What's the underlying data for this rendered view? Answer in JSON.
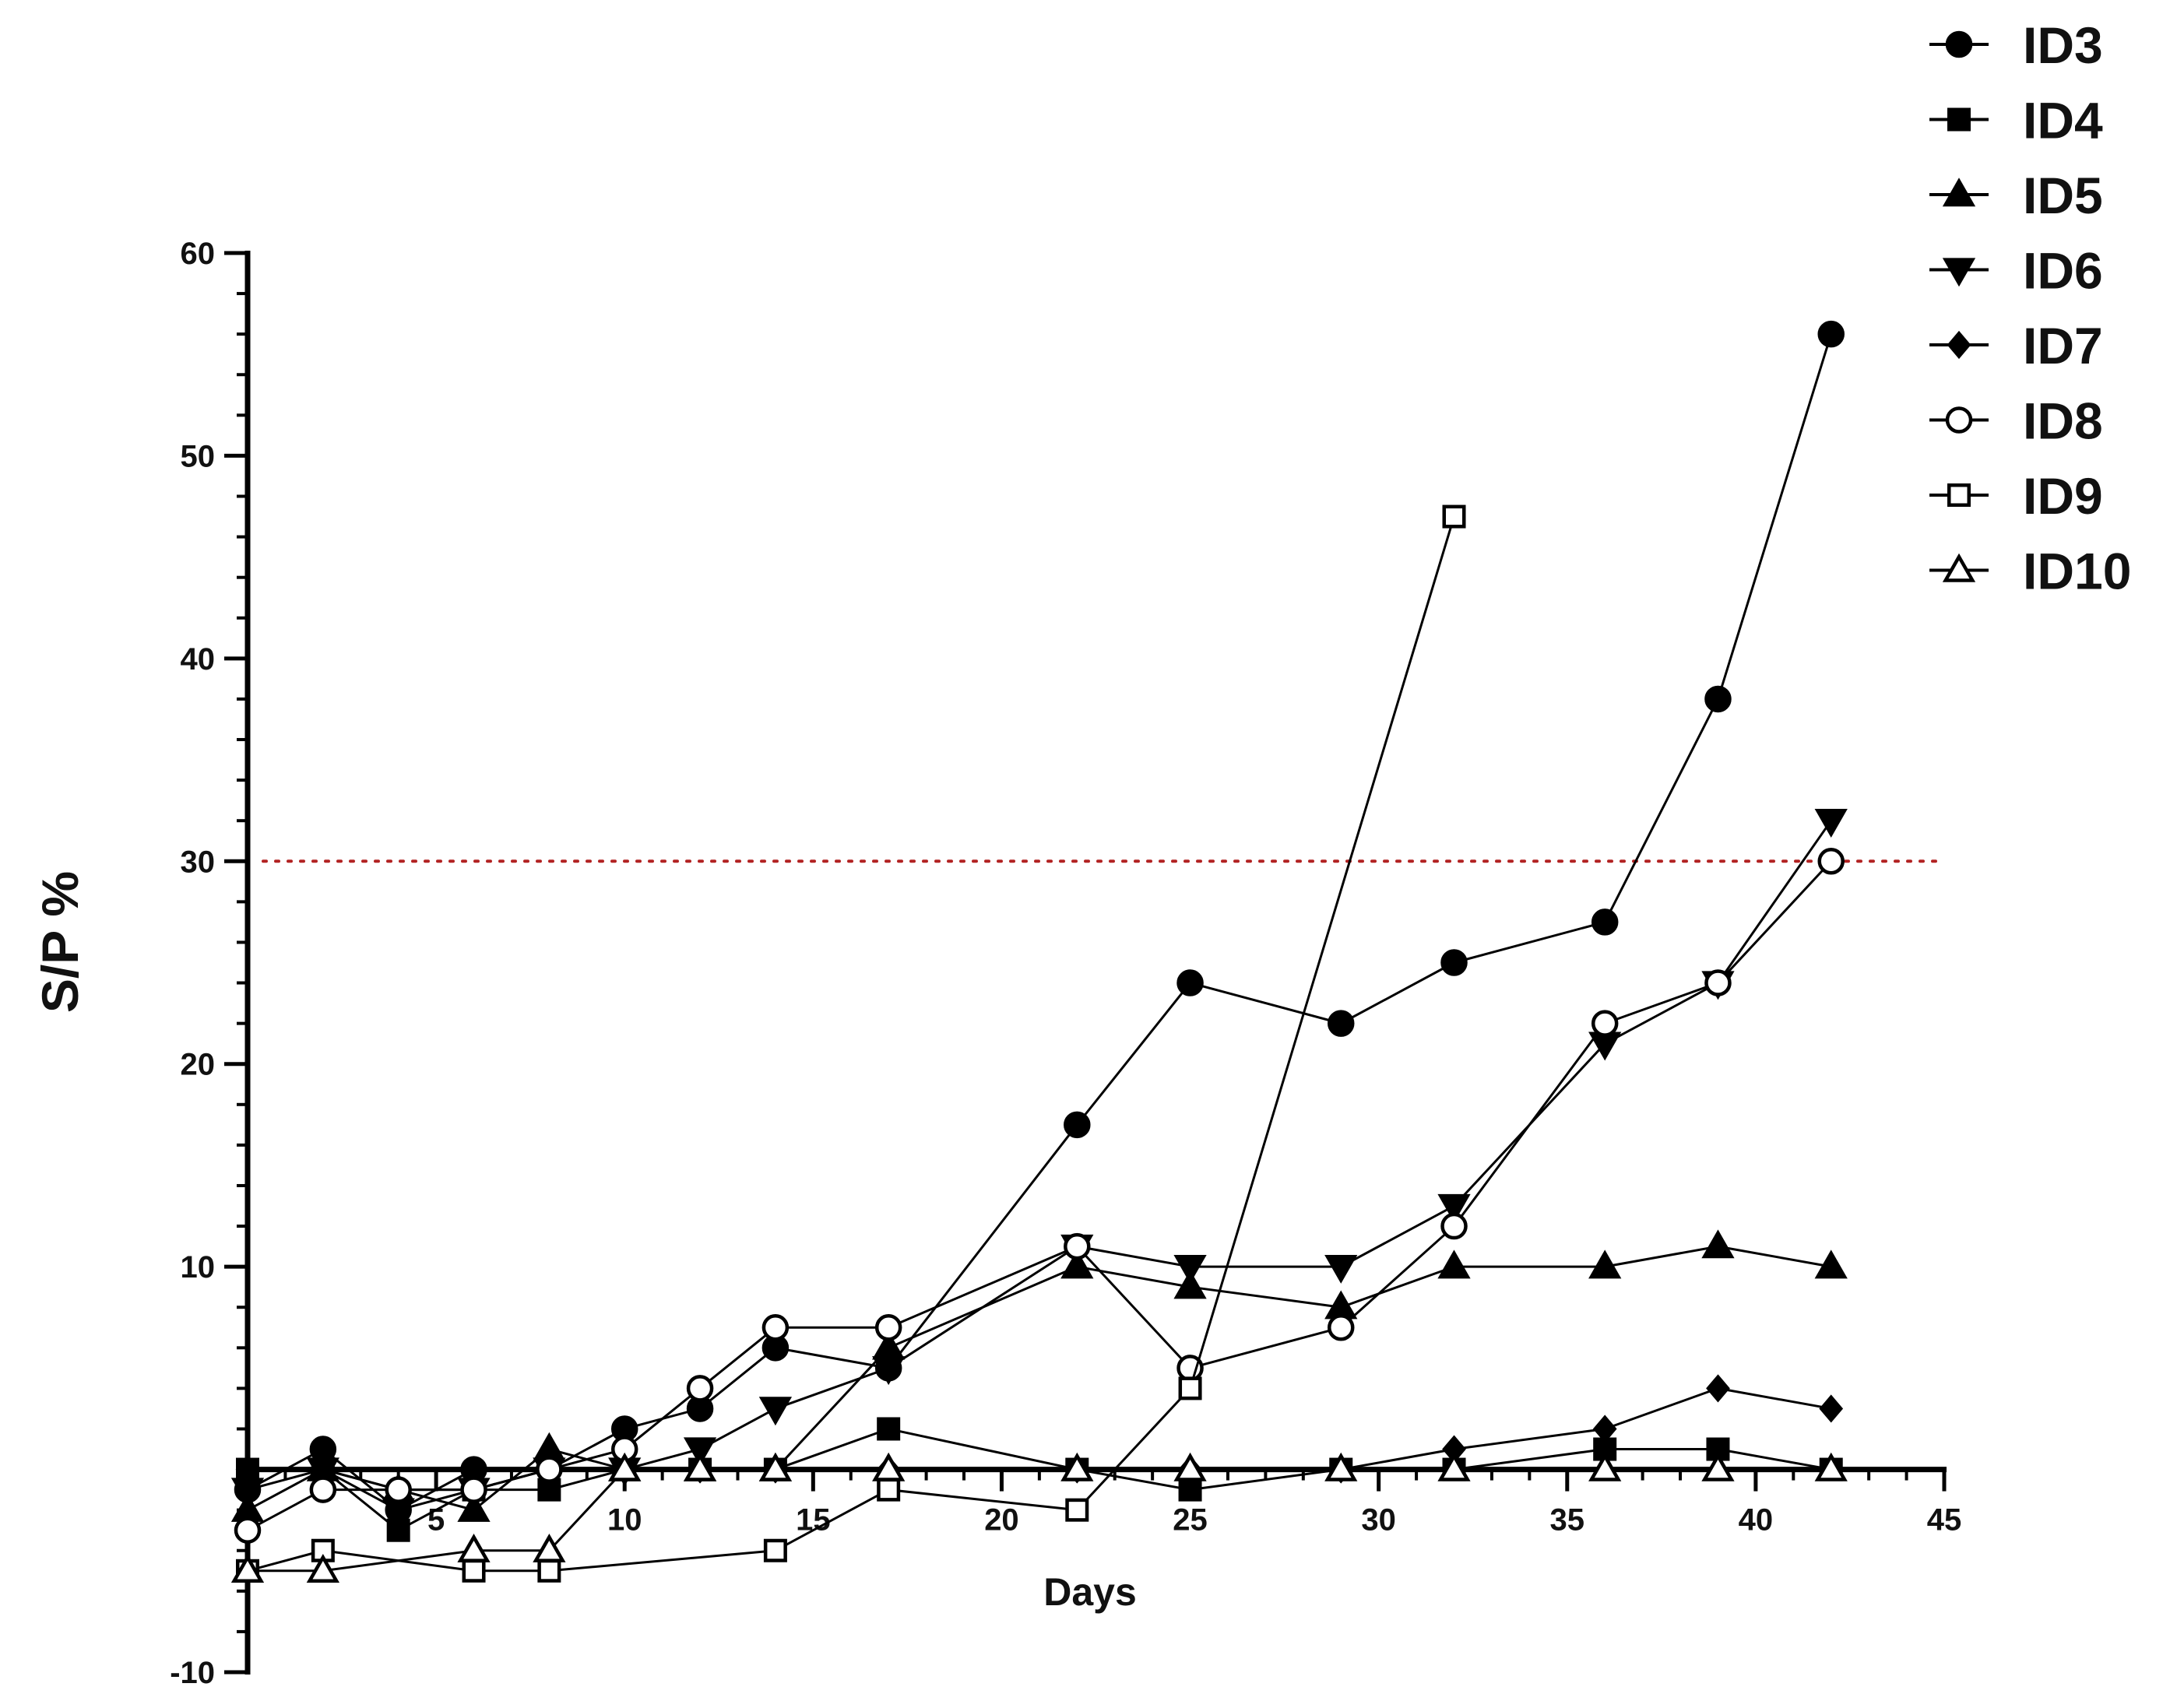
{
  "chart_data": {
    "type": "line",
    "title": "",
    "xlabel": "Days",
    "ylabel": "S/P %",
    "xlim": [
      0,
      45
    ],
    "ylim": [
      -10,
      60
    ],
    "x_ticks": [
      5,
      10,
      15,
      20,
      25,
      30,
      35,
      40,
      45
    ],
    "y_ticks": [
      -10,
      10,
      20,
      30,
      40,
      50,
      60
    ],
    "x_minor_step": 1,
    "y_minor_step": 2,
    "grid": false,
    "legend_position": "top-right",
    "threshold": {
      "y": 30,
      "style": "dotted",
      "color": "#b22222"
    },
    "series": [
      {
        "name": "ID3",
        "marker": "circle",
        "filled": true,
        "points": [
          [
            0,
            -1
          ],
          [
            2,
            1
          ],
          [
            4,
            -2
          ],
          [
            6,
            0
          ],
          [
            8,
            0
          ],
          [
            10,
            2
          ],
          [
            12,
            3
          ],
          [
            14,
            6
          ],
          [
            17,
            5
          ],
          [
            22,
            17
          ],
          [
            25,
            24
          ],
          [
            29,
            22
          ],
          [
            32,
            25
          ],
          [
            36,
            27
          ],
          [
            39,
            38
          ],
          [
            42,
            56
          ]
        ]
      },
      {
        "name": "ID4",
        "marker": "square",
        "filled": true,
        "points": [
          [
            0,
            0
          ],
          [
            2,
            0
          ],
          [
            4,
            -3
          ],
          [
            6,
            -1
          ],
          [
            8,
            -1
          ],
          [
            10,
            0
          ],
          [
            12,
            0
          ],
          [
            14,
            0
          ],
          [
            17,
            2
          ],
          [
            22,
            0
          ],
          [
            25,
            -1
          ],
          [
            29,
            0
          ],
          [
            32,
            0
          ],
          [
            36,
            1
          ],
          [
            39,
            1
          ],
          [
            42,
            0
          ]
        ]
      },
      {
        "name": "ID5",
        "marker": "triangle-up",
        "filled": true,
        "points": [
          [
            0,
            -2
          ],
          [
            2,
            0
          ],
          [
            4,
            -1
          ],
          [
            6,
            -2
          ],
          [
            8,
            1
          ],
          [
            10,
            0
          ],
          [
            12,
            0
          ],
          [
            14,
            0
          ],
          [
            17,
            6
          ],
          [
            22,
            10
          ],
          [
            25,
            9
          ],
          [
            29,
            8
          ],
          [
            32,
            10
          ],
          [
            36,
            10
          ],
          [
            39,
            11
          ],
          [
            42,
            10
          ]
        ]
      },
      {
        "name": "ID6",
        "marker": "triangle-down",
        "filled": true,
        "points": [
          [
            0,
            -1
          ],
          [
            2,
            0
          ],
          [
            4,
            -2
          ],
          [
            6,
            -1
          ],
          [
            8,
            0
          ],
          [
            10,
            0
          ],
          [
            12,
            1
          ],
          [
            14,
            3
          ],
          [
            17,
            5
          ],
          [
            22,
            11
          ],
          [
            25,
            10
          ],
          [
            29,
            10
          ],
          [
            32,
            13
          ],
          [
            36,
            21
          ],
          [
            39,
            24
          ],
          [
            42,
            32
          ]
        ]
      },
      {
        "name": "ID7",
        "marker": "diamond",
        "filled": true,
        "points": [
          [
            0,
            0
          ],
          [
            2,
            0
          ],
          [
            4,
            -1
          ],
          [
            6,
            -1
          ],
          [
            8,
            0
          ],
          [
            10,
            0
          ],
          [
            12,
            0
          ],
          [
            14,
            0
          ],
          [
            17,
            0
          ],
          [
            22,
            0
          ],
          [
            25,
            0
          ],
          [
            29,
            0
          ],
          [
            32,
            1
          ],
          [
            36,
            2
          ],
          [
            39,
            4
          ],
          [
            42,
            3
          ]
        ]
      },
      {
        "name": "ID8",
        "marker": "circle",
        "filled": false,
        "points": [
          [
            0,
            -3
          ],
          [
            2,
            -1
          ],
          [
            4,
            -1
          ],
          [
            6,
            -1
          ],
          [
            8,
            0
          ],
          [
            10,
            1
          ],
          [
            12,
            4
          ],
          [
            14,
            7
          ],
          [
            17,
            7
          ],
          [
            22,
            11
          ],
          [
            25,
            5
          ],
          [
            29,
            7
          ],
          [
            32,
            12
          ],
          [
            36,
            22
          ],
          [
            39,
            24
          ],
          [
            42,
            30
          ]
        ]
      },
      {
        "name": "ID9",
        "marker": "square",
        "filled": false,
        "points": [
          [
            0,
            -5
          ],
          [
            2,
            -4
          ],
          [
            6,
            -5
          ],
          [
            8,
            -5
          ],
          [
            14,
            -4
          ],
          [
            17,
            -1
          ],
          [
            22,
            -2
          ],
          [
            25,
            4
          ],
          [
            32,
            47
          ]
        ]
      },
      {
        "name": "ID10",
        "marker": "triangle-up",
        "filled": false,
        "points": [
          [
            0,
            -5
          ],
          [
            2,
            -5
          ],
          [
            6,
            -4
          ],
          [
            8,
            -4
          ],
          [
            10,
            0
          ],
          [
            12,
            0
          ],
          [
            14,
            0
          ],
          [
            17,
            0
          ],
          [
            22,
            0
          ],
          [
            25,
            0
          ],
          [
            29,
            0
          ],
          [
            32,
            0
          ],
          [
            36,
            0
          ],
          [
            39,
            0
          ],
          [
            42,
            0
          ]
        ]
      }
    ]
  }
}
